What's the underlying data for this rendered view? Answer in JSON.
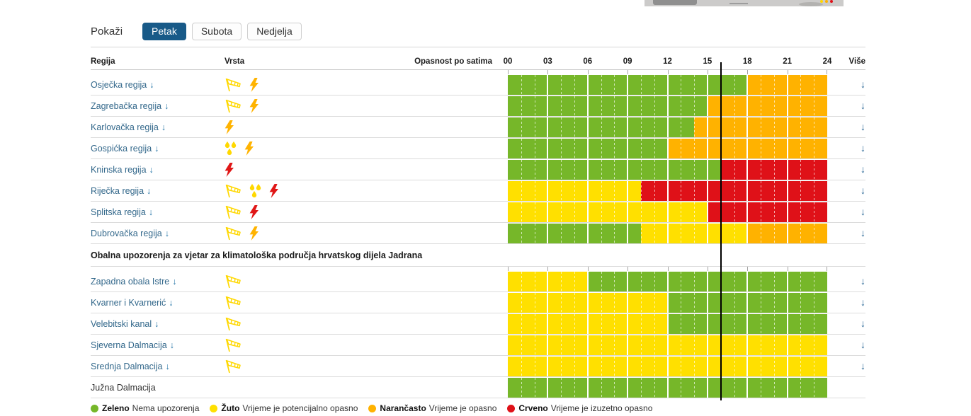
{
  "controls": {
    "show_label": "Pokaži"
  },
  "tabs": [
    {
      "label": "Petak",
      "active": true
    },
    {
      "label": "Subota",
      "active": false
    },
    {
      "label": "Nedjelja",
      "active": false
    }
  ],
  "table": {
    "headers": {
      "region": "Regija",
      "type": "Vrsta",
      "hours": "Opasnost po satima",
      "more": "Više"
    },
    "hour_ticks": [
      "00",
      "03",
      "06",
      "09",
      "12",
      "15",
      "18",
      "21",
      "24"
    ]
  },
  "current_time_hour": 16,
  "colors": {
    "green": "#76b729",
    "yellow": "#ffe000",
    "orange": "#ffb200",
    "red": "#df1118",
    "icon_yellow": "#ffd800",
    "icon_orange": "#ffb300",
    "icon_red": "#e01717",
    "tab_active": "#185a88",
    "link": "#33688b",
    "link_arrow": "#2374a6",
    "more_arrow": "#1d5e90"
  },
  "main_rows": [
    {
      "name": "Osječka regija",
      "link": true,
      "icons": [
        {
          "type": "windsock",
          "color": "icon_yellow"
        },
        {
          "type": "lightning",
          "color": "icon_orange"
        }
      ],
      "segments": [
        {
          "from": 0,
          "to": 18,
          "level": "green"
        },
        {
          "from": 18,
          "to": 24,
          "level": "orange"
        }
      ]
    },
    {
      "name": "Zagrebačka regija",
      "link": true,
      "icons": [
        {
          "type": "windsock",
          "color": "icon_yellow"
        },
        {
          "type": "lightning",
          "color": "icon_orange"
        }
      ],
      "segments": [
        {
          "from": 0,
          "to": 15,
          "level": "green"
        },
        {
          "from": 15,
          "to": 24,
          "level": "orange"
        }
      ]
    },
    {
      "name": "Karlovačka regija",
      "link": true,
      "icons": [
        {
          "type": "lightning",
          "color": "icon_orange"
        }
      ],
      "segments": [
        {
          "from": 0,
          "to": 14,
          "level": "green"
        },
        {
          "from": 14,
          "to": 24,
          "level": "orange"
        }
      ]
    },
    {
      "name": "Gospićka regija",
      "link": true,
      "icons": [
        {
          "type": "rain",
          "color": "icon_yellow"
        },
        {
          "type": "lightning",
          "color": "icon_orange"
        }
      ],
      "segments": [
        {
          "from": 0,
          "to": 12,
          "level": "green"
        },
        {
          "from": 12,
          "to": 24,
          "level": "orange"
        }
      ]
    },
    {
      "name": "Kninska regija",
      "link": true,
      "icons": [
        {
          "type": "lightning",
          "color": "icon_red"
        }
      ],
      "segments": [
        {
          "from": 0,
          "to": 16,
          "level": "green"
        },
        {
          "from": 16,
          "to": 24,
          "level": "red"
        }
      ]
    },
    {
      "name": "Riječka regija",
      "link": true,
      "icons": [
        {
          "type": "windsock",
          "color": "icon_yellow"
        },
        {
          "type": "rain",
          "color": "icon_yellow"
        },
        {
          "type": "lightning",
          "color": "icon_red"
        }
      ],
      "segments": [
        {
          "from": 0,
          "to": 10,
          "level": "yellow"
        },
        {
          "from": 10,
          "to": 24,
          "level": "red"
        }
      ]
    },
    {
      "name": "Splitska regija",
      "link": true,
      "icons": [
        {
          "type": "windsock",
          "color": "icon_yellow"
        },
        {
          "type": "lightning",
          "color": "icon_red"
        }
      ],
      "segments": [
        {
          "from": 0,
          "to": 15,
          "level": "yellow"
        },
        {
          "from": 15,
          "to": 24,
          "level": "red"
        }
      ]
    },
    {
      "name": "Dubrovačka regija",
      "link": true,
      "icons": [
        {
          "type": "windsock",
          "color": "icon_yellow"
        },
        {
          "type": "lightning",
          "color": "icon_orange"
        }
      ],
      "segments": [
        {
          "from": 0,
          "to": 10,
          "level": "green"
        },
        {
          "from": 10,
          "to": 18,
          "level": "yellow"
        },
        {
          "from": 18,
          "to": 24,
          "level": "orange"
        }
      ]
    }
  ],
  "section_title": "Obalna upozorenja za vjetar za klimatološka područja hrvatskog dijela Jadrana",
  "coastal_rows": [
    {
      "name": "Zapadna obala Istre",
      "link": true,
      "icons": [
        {
          "type": "windsock",
          "color": "icon_yellow"
        }
      ],
      "segments": [
        {
          "from": 0,
          "to": 6,
          "level": "yellow"
        },
        {
          "from": 6,
          "to": 24,
          "level": "green"
        }
      ]
    },
    {
      "name": "Kvarner i Kvarnerić",
      "link": true,
      "icons": [
        {
          "type": "windsock",
          "color": "icon_yellow"
        }
      ],
      "segments": [
        {
          "from": 0,
          "to": 12,
          "level": "yellow"
        },
        {
          "from": 12,
          "to": 24,
          "level": "green"
        }
      ]
    },
    {
      "name": "Velebitski kanal",
      "link": true,
      "icons": [
        {
          "type": "windsock",
          "color": "icon_yellow"
        }
      ],
      "segments": [
        {
          "from": 0,
          "to": 12,
          "level": "yellow"
        },
        {
          "from": 12,
          "to": 24,
          "level": "green"
        }
      ]
    },
    {
      "name": "Sjeverna Dalmacija",
      "link": true,
      "icons": [
        {
          "type": "windsock",
          "color": "icon_yellow"
        }
      ],
      "segments": [
        {
          "from": 0,
          "to": 24,
          "level": "yellow"
        }
      ]
    },
    {
      "name": "Srednja Dalmacija",
      "link": true,
      "icons": [
        {
          "type": "windsock",
          "color": "icon_yellow"
        }
      ],
      "segments": [
        {
          "from": 0,
          "to": 24,
          "level": "yellow"
        }
      ]
    },
    {
      "name": "Južna Dalmacija",
      "link": false,
      "icons": [],
      "segments": [
        {
          "from": 0,
          "to": 24,
          "level": "green"
        }
      ]
    }
  ],
  "legend": [
    {
      "name": "Zeleno",
      "desc": "Nema upozorenja",
      "level": "green"
    },
    {
      "name": "Žuto",
      "desc": "Vrijeme je potencijalno opasno",
      "level": "yellow"
    },
    {
      "name": "Narančasto",
      "desc": "Vrijeme je opasno",
      "level": "orange"
    },
    {
      "name": "Crveno",
      "desc": "Vrijeme je izuzetno opasno",
      "level": "red"
    }
  ]
}
